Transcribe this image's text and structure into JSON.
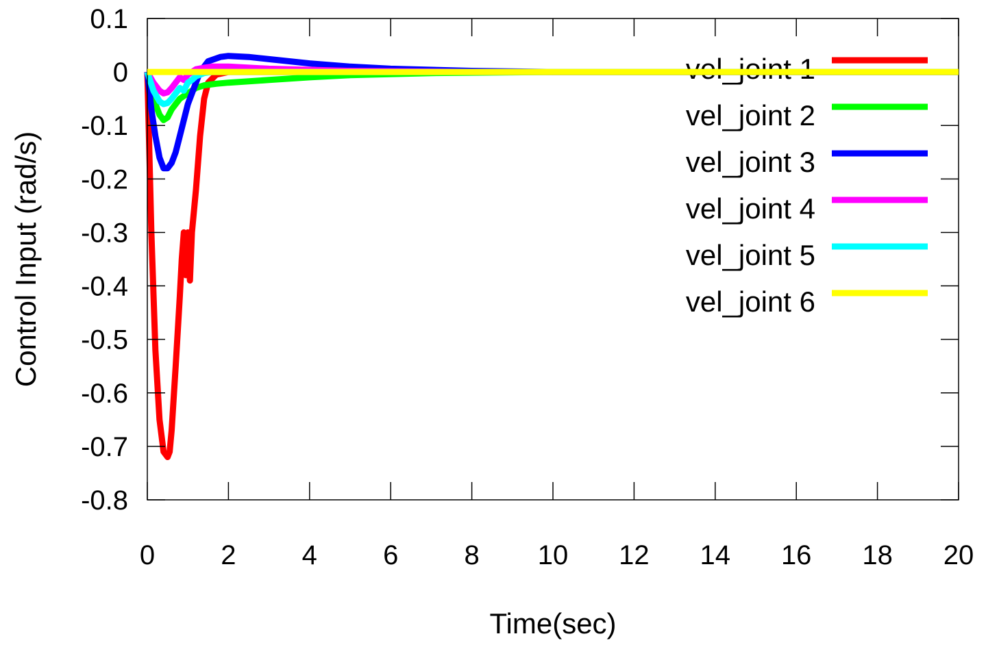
{
  "chart_data": {
    "type": "line",
    "xlabel": "Time(sec)",
    "ylabel": "Control Input (rad/s)",
    "xlim": [
      0,
      20
    ],
    "ylim": [
      -0.8,
      0.1
    ],
    "xticks": [
      0,
      2,
      4,
      6,
      8,
      10,
      12,
      14,
      16,
      18,
      20
    ],
    "yticks": [
      0.1,
      0,
      -0.1,
      -0.2,
      -0.3,
      -0.4,
      -0.5,
      -0.6,
      -0.7,
      -0.8
    ],
    "ytick_labels": [
      "0.1",
      "0",
      "-0.1",
      "-0.2",
      "-0.3",
      "-0.4",
      "-0.5",
      "-0.6",
      "-0.7",
      "-0.8"
    ],
    "xtick_labels": [
      "0",
      "2",
      "4",
      "6",
      "8",
      "10",
      "12",
      "14",
      "16",
      "18",
      "20"
    ],
    "grid": false,
    "legend_position": "top-right",
    "series": [
      {
        "name": "vel_joint 1",
        "color": "#ff0000",
        "x": [
          0,
          0.1,
          0.2,
          0.3,
          0.4,
          0.5,
          0.55,
          0.6,
          0.7,
          0.8,
          0.85,
          0.9,
          0.95,
          1.0,
          1.05,
          1.1,
          1.2,
          1.3,
          1.4,
          1.5,
          1.7,
          2.0,
          3.0,
          5.0,
          10.0,
          20.0
        ],
        "y": [
          0,
          -0.3,
          -0.52,
          -0.65,
          -0.71,
          -0.72,
          -0.71,
          -0.67,
          -0.55,
          -0.42,
          -0.35,
          -0.3,
          -0.38,
          -0.3,
          -0.39,
          -0.3,
          -0.22,
          -0.12,
          -0.05,
          -0.02,
          -0.005,
          0,
          0,
          0,
          0,
          0
        ]
      },
      {
        "name": "vel_joint 2",
        "color": "#00ff00",
        "x": [
          0,
          0.15,
          0.3,
          0.4,
          0.5,
          0.6,
          0.7,
          0.8,
          0.9,
          1.0,
          1.1,
          1.2,
          1.4,
          1.7,
          2.0,
          3.0,
          4.0,
          5.0,
          7.0,
          10.0,
          20.0
        ],
        "y": [
          0,
          -0.05,
          -0.08,
          -0.09,
          -0.085,
          -0.07,
          -0.06,
          -0.05,
          -0.045,
          -0.04,
          -0.035,
          -0.03,
          -0.025,
          -0.022,
          -0.02,
          -0.015,
          -0.01,
          -0.006,
          -0.002,
          0,
          0
        ]
      },
      {
        "name": "vel_joint 3",
        "color": "#0000ff",
        "x": [
          0,
          0.1,
          0.2,
          0.3,
          0.4,
          0.5,
          0.6,
          0.7,
          0.8,
          0.9,
          1.0,
          1.1,
          1.2,
          1.3,
          1.5,
          1.8,
          2.0,
          2.5,
          3.0,
          4.0,
          5.0,
          6.0,
          8.0,
          10.0,
          20.0
        ],
        "y": [
          0,
          -0.07,
          -0.12,
          -0.16,
          -0.18,
          -0.18,
          -0.17,
          -0.15,
          -0.12,
          -0.09,
          -0.06,
          -0.04,
          -0.02,
          0.0,
          0.02,
          0.028,
          0.03,
          0.028,
          0.024,
          0.016,
          0.01,
          0.006,
          0.002,
          0,
          0
        ]
      },
      {
        "name": "vel_joint 4",
        "color": "#ff00ff",
        "x": [
          0,
          0.15,
          0.3,
          0.4,
          0.5,
          0.6,
          0.7,
          0.8,
          0.9,
          1.0,
          1.1,
          1.2,
          1.4,
          1.6,
          2.0,
          3.0,
          5.0,
          8.0,
          20.0
        ],
        "y": [
          0,
          -0.02,
          -0.035,
          -0.04,
          -0.038,
          -0.03,
          -0.02,
          -0.01,
          -0.015,
          -0.005,
          0.0,
          0.005,
          0.008,
          0.01,
          0.01,
          0.006,
          0.002,
          0,
          0
        ]
      },
      {
        "name": "vel_joint 5",
        "color": "#00ffff",
        "x": [
          0,
          0.15,
          0.3,
          0.4,
          0.5,
          0.6,
          0.7,
          0.8,
          0.9,
          1.0,
          1.1,
          1.2,
          1.4,
          1.6,
          2.0,
          3.0,
          5.0,
          20.0
        ],
        "y": [
          0,
          -0.035,
          -0.055,
          -0.06,
          -0.058,
          -0.05,
          -0.04,
          -0.03,
          -0.035,
          -0.02,
          -0.015,
          -0.008,
          -0.002,
          0.0,
          0.0,
          0.0,
          0.0,
          0
        ]
      },
      {
        "name": "vel_joint 6",
        "color": "#ffff00",
        "x": [
          0,
          20
        ],
        "y": [
          0,
          0
        ]
      }
    ]
  }
}
